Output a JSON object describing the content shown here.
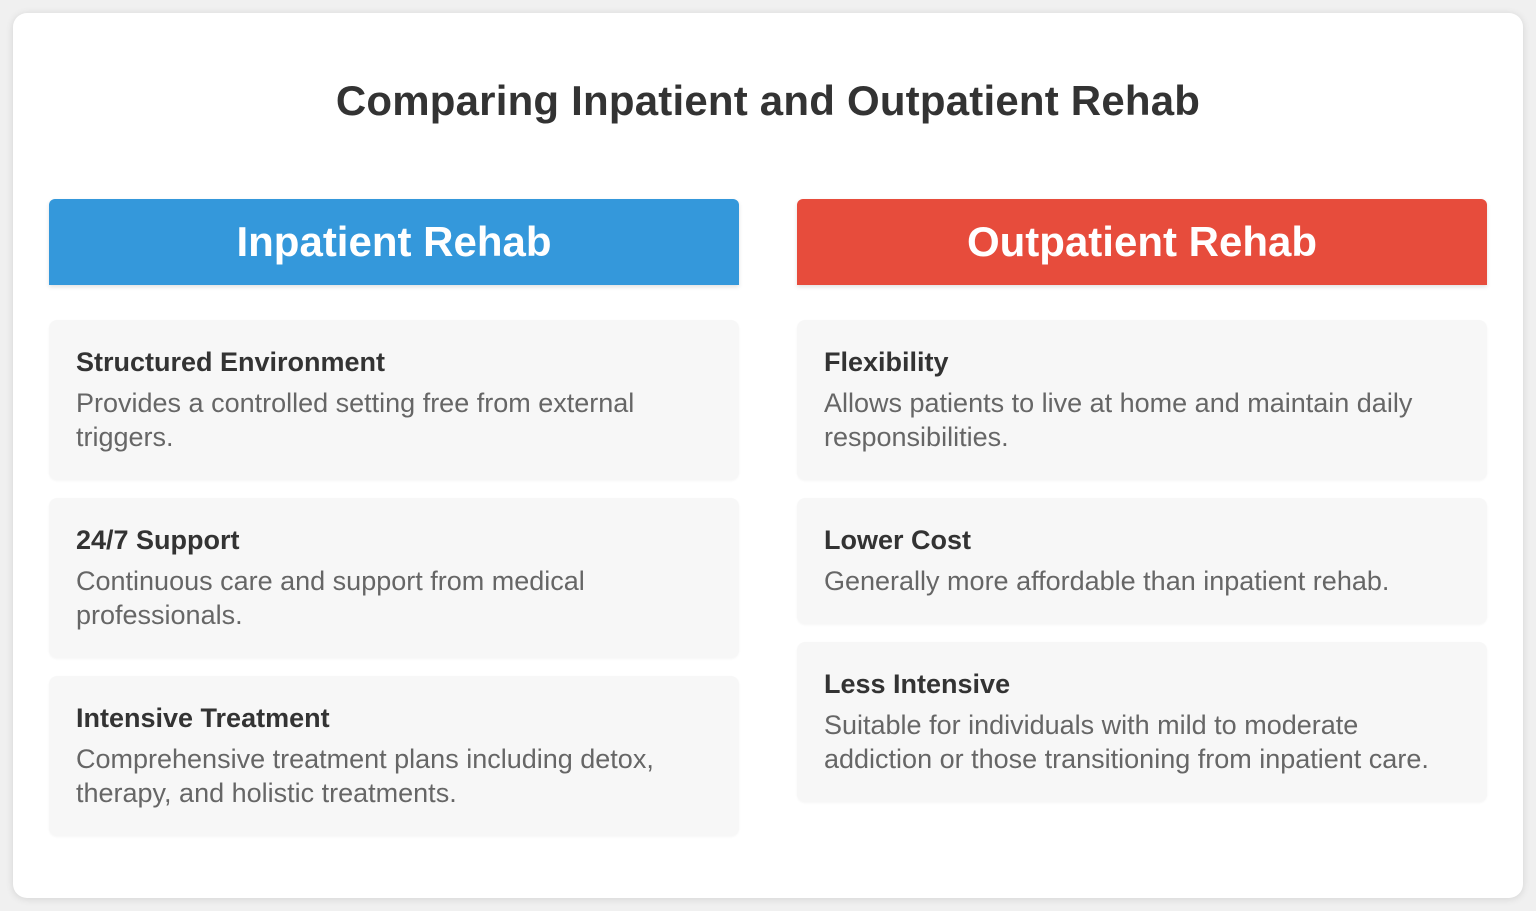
{
  "title": "Comparing Inpatient and Outpatient Rehab",
  "colors": {
    "inpatient": "#3498db",
    "outpatient": "#e74c3c"
  },
  "columns": [
    {
      "header": "Inpatient Rehab",
      "items": [
        {
          "title": "Structured Environment",
          "desc": "Provides a controlled setting free from external triggers."
        },
        {
          "title": "24/7 Support",
          "desc": "Continuous care and support from medical professionals."
        },
        {
          "title": "Intensive Treatment",
          "desc": "Comprehensive treatment plans including detox, therapy, and holistic treatments."
        }
      ]
    },
    {
      "header": "Outpatient Rehab",
      "items": [
        {
          "title": "Flexibility",
          "desc": "Allows patients to live at home and maintain daily responsibilities."
        },
        {
          "title": "Lower Cost",
          "desc": "Generally more affordable than inpatient rehab."
        },
        {
          "title": "Less Intensive",
          "desc": "Suitable for individuals with mild to moderate addiction or those transitioning from inpatient care."
        }
      ]
    }
  ]
}
